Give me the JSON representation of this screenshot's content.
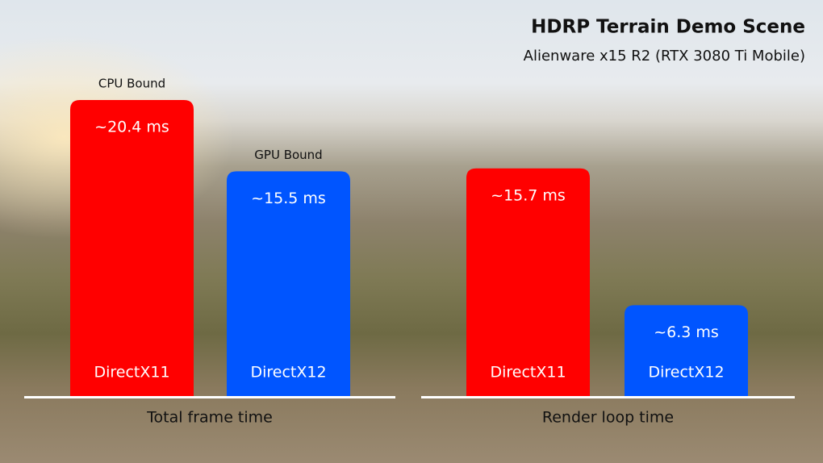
{
  "chart_data": {
    "type": "bar",
    "title": "HDRP Terrain Demo Scene",
    "subtitle": "Alienware x15 R2 (RTX 3080 Ti Mobile)",
    "categories": [
      "Total frame time",
      "Render loop time"
    ],
    "series": [
      {
        "name": "DirectX11",
        "color": "#ff0000",
        "values": [
          20.4,
          15.7
        ],
        "value_labels": [
          "~20.4 ms",
          "~15.7 ms"
        ]
      },
      {
        "name": "DirectX12",
        "color": "#0055ff",
        "values": [
          15.5,
          6.3
        ],
        "value_labels": [
          "~15.5 ms",
          "~6.3 ms"
        ]
      }
    ],
    "annotations": [
      "CPU Bound",
      "GPU Bound"
    ]
  }
}
